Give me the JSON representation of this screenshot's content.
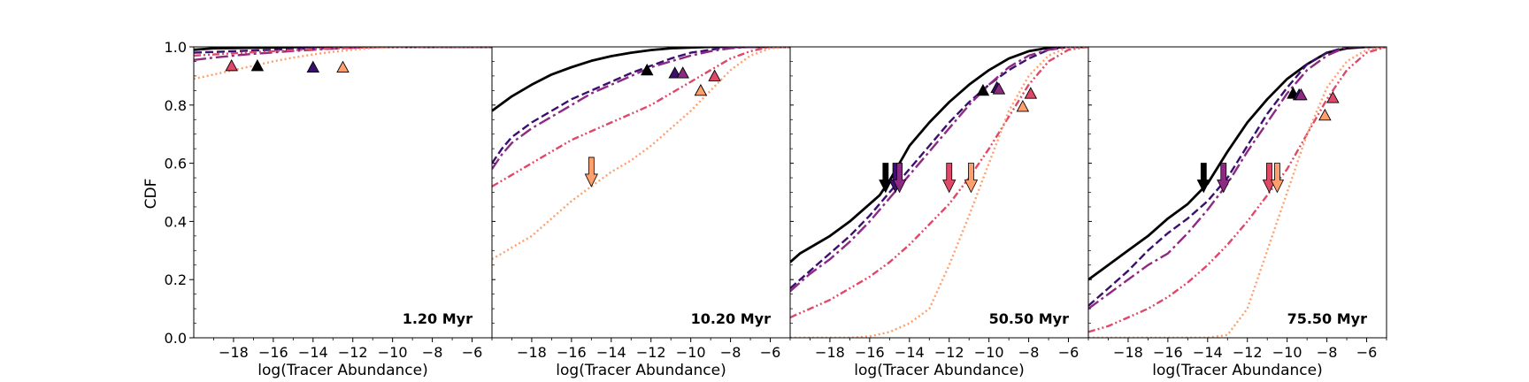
{
  "chart_data": {
    "type": "line",
    "ylabel": "CDF",
    "xlabel": "log(Tracer Abundance)",
    "xlim": [
      -20,
      -5
    ],
    "ylim": [
      0,
      1
    ],
    "xticks": [
      -18,
      -16,
      -14,
      -12,
      -10,
      -8,
      -6
    ],
    "xtick_labels": [
      "−18",
      "−16",
      "−14",
      "−12",
      "−10",
      "−8",
      "−6"
    ],
    "yticks": [
      0.0,
      0.2,
      0.4,
      0.6,
      0.8,
      1.0
    ],
    "ytick_labels": [
      "0.0",
      "0.2",
      "0.4",
      "0.6",
      "0.8",
      "1.0"
    ],
    "series_styles": [
      {
        "name": "black solid",
        "color": "#000000",
        "dash": "none"
      },
      {
        "name": "indigo dashed",
        "color": "#3b0f70",
        "dash": "9 4"
      },
      {
        "name": "purple dash-dot",
        "color": "#8c2981",
        "dash": "14 4 3 4"
      },
      {
        "name": "red dash-dot-dot",
        "color": "#de4968",
        "dash": "8 3 2 3 2 3"
      },
      {
        "name": "orange dotted",
        "color": "#fe9f6d",
        "dash": "2 3"
      }
    ],
    "panels": [
      {
        "label": "1.20 Myr",
        "series": [
          {
            "x": [
              -20,
              -19,
              -18,
              -17,
              -16,
              -15,
              -14,
              -12,
              -10,
              -8,
              -5
            ],
            "y": [
              0.99,
              0.995,
              0.996,
              0.997,
              0.998,
              0.999,
              1.0,
              1.0,
              1.0,
              1.0,
              1.0
            ]
          },
          {
            "x": [
              -20,
              -18,
              -16,
              -14,
              -12,
              -10,
              -8,
              -5
            ],
            "y": [
              0.98,
              0.985,
              0.99,
              0.995,
              0.998,
              1.0,
              1.0,
              1.0
            ]
          },
          {
            "x": [
              -20,
              -19,
              -18,
              -17,
              -16,
              -15,
              -14,
              -13,
              -12,
              -10,
              -8,
              -5
            ],
            "y": [
              0.955,
              0.963,
              0.97,
              0.976,
              0.981,
              0.986,
              0.99,
              0.994,
              0.997,
              1.0,
              1.0,
              1.0
            ]
          },
          {
            "x": [
              -20,
              -18,
              -16,
              -14,
              -12,
              -10,
              -8,
              -5
            ],
            "y": [
              0.97,
              0.978,
              0.985,
              0.992,
              0.997,
              1.0,
              1.0,
              1.0
            ]
          },
          {
            "x": [
              -20,
              -19,
              -18,
              -17,
              -16,
              -15,
              -14,
              -13,
              -12,
              -11,
              -10,
              -8,
              -5
            ],
            "y": [
              0.89,
              0.905,
              0.92,
              0.935,
              0.95,
              0.963,
              0.974,
              0.983,
              0.99,
              0.996,
              0.999,
              1.0,
              1.0
            ]
          }
        ],
        "triangles": [
          {
            "series": 3,
            "x": -18.1,
            "y": 0.935
          },
          {
            "series": 0,
            "x": -16.8,
            "y": 0.935
          },
          {
            "series": 1,
            "x": -14.0,
            "y": 0.93
          },
          {
            "series": 4,
            "x": -12.5,
            "y": 0.93
          }
        ],
        "arrows": []
      },
      {
        "label": "10.20 Myr",
        "series": [
          {
            "x": [
              -20,
              -19,
              -18,
              -17,
              -16,
              -15,
              -14,
              -13,
              -12,
              -11,
              -10,
              -9,
              -8,
              -5
            ],
            "y": [
              0.78,
              0.83,
              0.87,
              0.905,
              0.93,
              0.952,
              0.968,
              0.98,
              0.989,
              0.995,
              0.998,
              1.0,
              1.0,
              1.0
            ]
          },
          {
            "x": [
              -20,
              -19.5,
              -19,
              -18,
              -17,
              -16,
              -15,
              -14,
              -13,
              -12,
              -11,
              -10,
              -9,
              -8,
              -7,
              -5
            ],
            "y": [
              0.6,
              0.65,
              0.69,
              0.74,
              0.78,
              0.82,
              0.85,
              0.88,
              0.91,
              0.935,
              0.96,
              0.98,
              0.99,
              1.0,
              1.0,
              1.0
            ]
          },
          {
            "x": [
              -20,
              -19.5,
              -19,
              -18,
              -17,
              -16,
              -15,
              -14,
              -13,
              -12,
              -11,
              -10,
              -9,
              -8,
              -7,
              -5
            ],
            "y": [
              0.58,
              0.63,
              0.67,
              0.72,
              0.76,
              0.8,
              0.84,
              0.87,
              0.9,
              0.93,
              0.95,
              0.97,
              0.985,
              0.995,
              1.0,
              1.0
            ]
          },
          {
            "x": [
              -20,
              -19,
              -18,
              -17,
              -16,
              -15,
              -14,
              -13,
              -12,
              -11,
              -10,
              -9,
              -8,
              -7,
              -6,
              -5
            ],
            "y": [
              0.52,
              0.56,
              0.6,
              0.64,
              0.68,
              0.71,
              0.74,
              0.77,
              0.8,
              0.84,
              0.88,
              0.92,
              0.96,
              0.985,
              1.0,
              1.0
            ]
          },
          {
            "x": [
              -20,
              -19,
              -18,
              -17,
              -16,
              -15,
              -14,
              -13,
              -12,
              -11,
              -10,
              -9,
              -8,
              -7,
              -6,
              -5
            ],
            "y": [
              0.27,
              0.31,
              0.35,
              0.41,
              0.47,
              0.52,
              0.57,
              0.61,
              0.66,
              0.72,
              0.78,
              0.85,
              0.92,
              0.97,
              0.995,
              1.0
            ]
          }
        ],
        "triangles": [
          {
            "series": 0,
            "x": -12.2,
            "y": 0.92
          },
          {
            "series": 1,
            "x": -10.8,
            "y": 0.91
          },
          {
            "series": 2,
            "x": -10.4,
            "y": 0.91
          },
          {
            "series": 4,
            "x": -9.5,
            "y": 0.85
          },
          {
            "series": 3,
            "x": -8.8,
            "y": 0.9
          }
        ],
        "arrows": [
          {
            "series": 4,
            "x": -15.0,
            "y": 0.52
          }
        ]
      },
      {
        "label": "50.50 Myr",
        "series": [
          {
            "x": [
              -20,
              -19.5,
              -19,
              -18,
              -17,
              -16,
              -15.5,
              -15,
              -14.5,
              -14,
              -13,
              -12,
              -11,
              -10,
              -9,
              -8,
              -7,
              -6,
              -5
            ],
            "y": [
              0.26,
              0.29,
              0.31,
              0.35,
              0.4,
              0.46,
              0.49,
              0.54,
              0.6,
              0.66,
              0.74,
              0.81,
              0.87,
              0.92,
              0.96,
              0.985,
              0.997,
              1.0,
              1.0
            ]
          },
          {
            "x": [
              -20,
              -19,
              -18,
              -17,
              -16,
              -15,
              -14,
              -13,
              -12,
              -11,
              -10,
              -9,
              -8,
              -7,
              -6,
              -5
            ],
            "y": [
              0.17,
              0.23,
              0.29,
              0.35,
              0.42,
              0.5,
              0.58,
              0.66,
              0.74,
              0.81,
              0.87,
              0.92,
              0.96,
              0.99,
              1.0,
              1.0
            ]
          },
          {
            "x": [
              -20,
              -19,
              -18,
              -17,
              -16,
              -15,
              -14,
              -13,
              -12,
              -11,
              -10,
              -9,
              -8,
              -7,
              -6,
              -5
            ],
            "y": [
              0.16,
              0.22,
              0.27,
              0.33,
              0.4,
              0.48,
              0.56,
              0.64,
              0.72,
              0.8,
              0.87,
              0.93,
              0.97,
              0.99,
              1.0,
              1.0
            ]
          },
          {
            "x": [
              -20,
              -19,
              -18,
              -17,
              -16,
              -15,
              -14,
              -13,
              -12,
              -11,
              -10,
              -9,
              -8,
              -7,
              -6,
              -5
            ],
            "y": [
              0.07,
              0.1,
              0.13,
              0.17,
              0.21,
              0.26,
              0.32,
              0.39,
              0.46,
              0.55,
              0.65,
              0.76,
              0.87,
              0.95,
              0.99,
              1.0
            ]
          },
          {
            "x": [
              -20,
              -17,
              -16,
              -15,
              -14,
              -13,
              -12,
              -11,
              -10,
              -9,
              -8,
              -7,
              -6,
              -5
            ],
            "y": [
              0.0,
              0.0,
              0.005,
              0.02,
              0.05,
              0.1,
              0.25,
              0.42,
              0.6,
              0.78,
              0.9,
              0.97,
              1.0,
              1.0
            ]
          }
        ],
        "triangles": [
          {
            "series": 0,
            "x": -10.3,
            "y": 0.85
          },
          {
            "series": 1,
            "x": -9.6,
            "y": 0.86
          },
          {
            "series": 2,
            "x": -9.5,
            "y": 0.855
          },
          {
            "series": 4,
            "x": -8.3,
            "y": 0.795
          },
          {
            "series": 3,
            "x": -7.9,
            "y": 0.84
          }
        ],
        "arrows": [
          {
            "series": 0,
            "x": -15.2,
            "y": 0.5
          },
          {
            "series": 1,
            "x": -14.7,
            "y": 0.5
          },
          {
            "series": 2,
            "x": -14.5,
            "y": 0.5
          },
          {
            "series": 3,
            "x": -12.0,
            "y": 0.5
          },
          {
            "series": 4,
            "x": -10.9,
            "y": 0.5
          }
        ]
      },
      {
        "label": "75.50 Myr",
        "series": [
          {
            "x": [
              -20,
              -19,
              -18,
              -17,
              -16,
              -15,
              -14,
              -13,
              -12,
              -11,
              -10,
              -9,
              -8,
              -7,
              -6,
              -5
            ],
            "y": [
              0.2,
              0.25,
              0.3,
              0.35,
              0.41,
              0.46,
              0.53,
              0.64,
              0.74,
              0.82,
              0.89,
              0.94,
              0.98,
              0.995,
              1.0,
              1.0
            ]
          },
          {
            "x": [
              -20,
              -19,
              -18,
              -17,
              -16,
              -15,
              -14,
              -13,
              -12,
              -11,
              -10,
              -9,
              -8,
              -7,
              -6,
              -5
            ],
            "y": [
              0.11,
              0.17,
              0.23,
              0.3,
              0.36,
              0.41,
              0.47,
              0.55,
              0.66,
              0.77,
              0.86,
              0.94,
              0.98,
              1.0,
              1.0,
              1.0
            ]
          },
          {
            "x": [
              -20,
              -19,
              -18,
              -17,
              -16,
              -15,
              -14,
              -13,
              -12,
              -11,
              -10,
              -9,
              -8,
              -7,
              -6,
              -5
            ],
            "y": [
              0.1,
              0.15,
              0.2,
              0.25,
              0.29,
              0.36,
              0.44,
              0.53,
              0.64,
              0.74,
              0.84,
              0.92,
              0.97,
              1.0,
              1.0,
              1.0
            ]
          },
          {
            "x": [
              -20,
              -19,
              -18,
              -17,
              -16,
              -15,
              -14,
              -13,
              -12,
              -11,
              -10,
              -9,
              -8,
              -7,
              -6,
              -5
            ],
            "y": [
              0.02,
              0.04,
              0.07,
              0.1,
              0.14,
              0.19,
              0.25,
              0.32,
              0.4,
              0.49,
              0.58,
              0.7,
              0.82,
              0.92,
              0.98,
              1.0
            ]
          },
          {
            "x": [
              -20,
              -16,
              -14,
              -13,
              -12,
              -11,
              -10,
              -9,
              -8,
              -7,
              -6,
              -5
            ],
            "y": [
              0.0,
              0.0,
              0.0,
              0.01,
              0.1,
              0.3,
              0.5,
              0.7,
              0.86,
              0.95,
              0.99,
              1.0
            ]
          }
        ],
        "triangles": [
          {
            "series": 0,
            "x": -9.7,
            "y": 0.84
          },
          {
            "series": 1,
            "x": -9.4,
            "y": 0.835
          },
          {
            "series": 2,
            "x": -9.3,
            "y": 0.835
          },
          {
            "series": 4,
            "x": -8.1,
            "y": 0.765
          },
          {
            "series": 3,
            "x": -7.7,
            "y": 0.825
          }
        ],
        "arrows": [
          {
            "series": 0,
            "x": -14.2,
            "y": 0.5
          },
          {
            "series": 2,
            "x": -13.2,
            "y": 0.5
          },
          {
            "series": 3,
            "x": -10.9,
            "y": 0.5
          },
          {
            "series": 4,
            "x": -10.5,
            "y": 0.5
          }
        ]
      }
    ]
  }
}
